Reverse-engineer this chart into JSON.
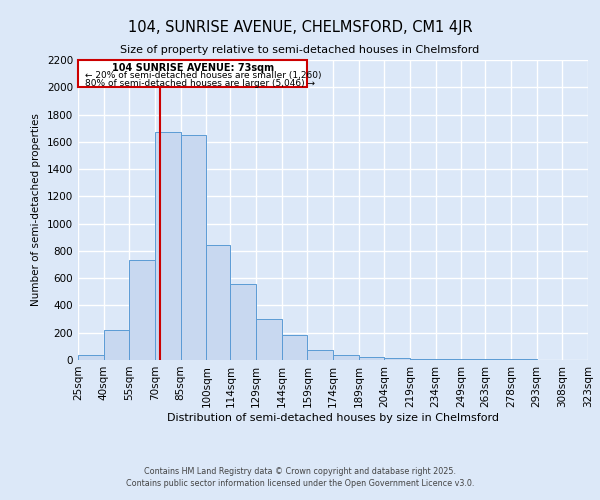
{
  "title": "104, SUNRISE AVENUE, CHELMSFORD, CM1 4JR",
  "subtitle": "Size of property relative to semi-detached houses in Chelmsford",
  "xlabel": "Distribution of semi-detached houses by size in Chelmsford",
  "ylabel": "Number of semi-detached properties",
  "bin_labels": [
    "25sqm",
    "40sqm",
    "55sqm",
    "70sqm",
    "85sqm",
    "100sqm",
    "114sqm",
    "129sqm",
    "144sqm",
    "159sqm",
    "174sqm",
    "189sqm",
    "204sqm",
    "219sqm",
    "234sqm",
    "249sqm",
    "263sqm",
    "278sqm",
    "293sqm",
    "308sqm",
    "323sqm"
  ],
  "bin_edges": [
    25,
    40,
    55,
    70,
    85,
    100,
    114,
    129,
    144,
    159,
    174,
    189,
    204,
    219,
    234,
    249,
    263,
    278,
    293,
    308,
    323
  ],
  "bar_heights": [
    40,
    220,
    730,
    1670,
    1650,
    840,
    560,
    300,
    180,
    75,
    35,
    20,
    15,
    5,
    5,
    5,
    5,
    5,
    0,
    0
  ],
  "bar_color": "#c8d8f0",
  "bar_edge_color": "#5b9bd5",
  "property_line_x": 73,
  "property_line_color": "#cc0000",
  "ylim": [
    0,
    2200
  ],
  "yticks": [
    0,
    200,
    400,
    600,
    800,
    1000,
    1200,
    1400,
    1600,
    1800,
    2000,
    2200
  ],
  "annotation_title": "104 SUNRISE AVENUE: 73sqm",
  "annotation_line1": "← 20% of semi-detached houses are smaller (1,260)",
  "annotation_line2": "80% of semi-detached houses are larger (5,046) →",
  "annotation_box_color": "#cc0000",
  "footer1": "Contains HM Land Registry data © Crown copyright and database right 2025.",
  "footer2": "Contains public sector information licensed under the Open Government Licence v3.0.",
  "background_color": "#dce8f8",
  "grid_color": "#ffffff"
}
